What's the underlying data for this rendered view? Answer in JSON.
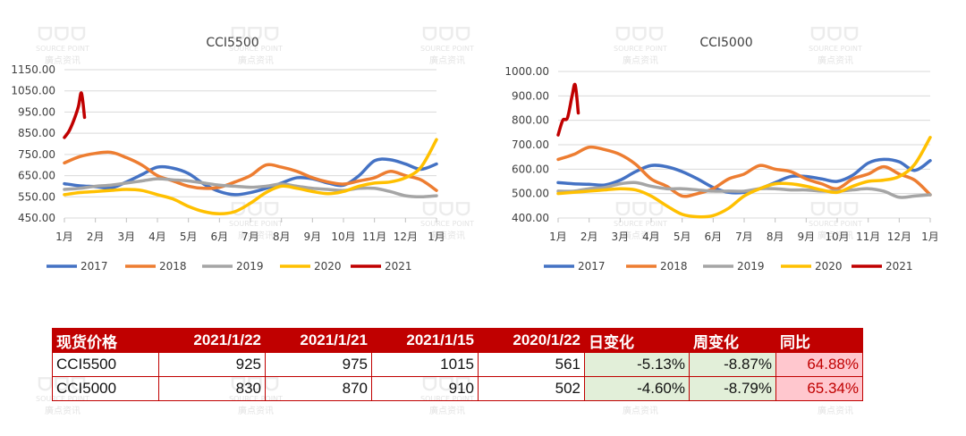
{
  "watermark": {
    "logo": "ᗜᗜᗜ",
    "en": "SOURCE POINT",
    "cn": "廣点资讯"
  },
  "chart_data": [
    {
      "type": "line",
      "title": "CCI5500",
      "ylim": [
        450,
        1150
      ],
      "yticks": [
        "1150.00",
        "1050.00",
        "950.00",
        "850.00",
        "750.00",
        "650.00",
        "550.00",
        "450.00"
      ],
      "ytick_values": [
        1150,
        1050,
        950,
        850,
        750,
        650,
        550,
        450
      ],
      "categories": [
        "1月",
        "2月",
        "3月",
        "4月",
        "5月",
        "6月",
        "7月",
        "8月",
        "9月",
        "10月",
        "11月",
        "12月",
        "1月"
      ],
      "grid": true,
      "legend": "bottom",
      "series": [
        {
          "name": "2017",
          "color": "#4472c4",
          "x": [
            0,
            0.5,
            1,
            1.5,
            2,
            2.5,
            3,
            3.5,
            4,
            4.5,
            5,
            5.5,
            6,
            6.5,
            7,
            7.5,
            8,
            8.5,
            9,
            9.5,
            10,
            10.5,
            11,
            11.5,
            12
          ],
          "values": [
            612,
            602,
            598,
            592,
            620,
            655,
            690,
            685,
            660,
            610,
            575,
            560,
            570,
            590,
            615,
            640,
            635,
            615,
            605,
            650,
            720,
            725,
            705,
            680,
            705
          ]
        },
        {
          "name": "2018",
          "color": "#ed7d31",
          "x": [
            0,
            0.5,
            1,
            1.5,
            2,
            2.5,
            3,
            3.5,
            4,
            4.5,
            5,
            5.5,
            6,
            6.5,
            7,
            7.5,
            8,
            8.5,
            9,
            9.5,
            10,
            10.5,
            11,
            11.5,
            12
          ],
          "values": [
            710,
            740,
            755,
            760,
            735,
            700,
            650,
            625,
            600,
            590,
            595,
            620,
            650,
            700,
            690,
            670,
            640,
            620,
            610,
            625,
            640,
            670,
            650,
            630,
            580
          ]
        },
        {
          "name": "2019",
          "color": "#a5a5a5",
          "x": [
            0,
            0.5,
            1,
            1.5,
            2,
            2.5,
            3,
            3.5,
            4,
            4.5,
            5,
            5.5,
            6,
            6.5,
            7,
            7.5,
            8,
            8.5,
            9,
            9.5,
            10,
            10.5,
            11,
            11.5,
            12
          ],
          "values": [
            585,
            590,
            600,
            605,
            615,
            625,
            635,
            630,
            625,
            615,
            605,
            600,
            595,
            600,
            610,
            600,
            590,
            585,
            580,
            590,
            590,
            575,
            555,
            550,
            555
          ]
        },
        {
          "name": "2020",
          "color": "#ffc000",
          "x": [
            0,
            0.5,
            1,
            1.5,
            2,
            2.5,
            3,
            3.5,
            4,
            4.5,
            5,
            5.5,
            6,
            6.5,
            7,
            7.5,
            8,
            8.5,
            9,
            9.5,
            10,
            10.5,
            11,
            11.5,
            12
          ],
          "values": [
            560,
            570,
            575,
            580,
            585,
            580,
            560,
            540,
            505,
            480,
            470,
            480,
            520,
            570,
            600,
            590,
            575,
            565,
            575,
            600,
            615,
            620,
            640,
            690,
            820
          ]
        },
        {
          "name": "2021",
          "color": "#c00000",
          "x": [
            0,
            0.15,
            0.3,
            0.45,
            0.55,
            0.65
          ],
          "values": [
            830,
            860,
            910,
            975,
            1040,
            925
          ]
        }
      ]
    },
    {
      "type": "line",
      "title": "CCI5000",
      "ylim": [
        400,
        1000
      ],
      "yticks": [
        "1000.00",
        "900.00",
        "800.00",
        "700.00",
        "600.00",
        "500.00",
        "400.00"
      ],
      "ytick_values": [
        1000,
        900,
        800,
        700,
        600,
        500,
        400
      ],
      "categories": [
        "1月",
        "2月",
        "3月",
        "4月",
        "5月",
        "6月",
        "7月",
        "8月",
        "9月",
        "10月",
        "11月",
        "12月",
        "1月"
      ],
      "grid": true,
      "legend": "bottom",
      "series": [
        {
          "name": "2017",
          "color": "#4472c4",
          "x": [
            0,
            0.5,
            1,
            1.5,
            2,
            2.5,
            3,
            3.5,
            4,
            4.5,
            5,
            5.5,
            6,
            6.5,
            7,
            7.5,
            8,
            8.5,
            9,
            9.5,
            10,
            10.5,
            11,
            11.5,
            12
          ],
          "values": [
            545,
            540,
            538,
            535,
            555,
            590,
            615,
            610,
            590,
            560,
            525,
            505,
            505,
            520,
            545,
            570,
            570,
            560,
            550,
            575,
            625,
            640,
            630,
            595,
            635
          ]
        },
        {
          "name": "2018",
          "color": "#ed7d31",
          "x": [
            0,
            0.5,
            1,
            1.5,
            2,
            2.5,
            3,
            3.5,
            4,
            4.5,
            5,
            5.5,
            6,
            6.5,
            7,
            7.5,
            8,
            8.5,
            9,
            9.5,
            10,
            10.5,
            11,
            11.5,
            12
          ],
          "values": [
            640,
            660,
            690,
            680,
            660,
            620,
            560,
            530,
            490,
            500,
            520,
            560,
            580,
            615,
            600,
            590,
            560,
            540,
            520,
            560,
            580,
            610,
            580,
            555,
            495
          ]
        },
        {
          "name": "2019",
          "color": "#a5a5a5",
          "x": [
            0,
            0.5,
            1,
            1.5,
            2,
            2.5,
            3,
            3.5,
            4,
            4.5,
            5,
            5.5,
            6,
            6.5,
            7,
            7.5,
            8,
            8.5,
            9,
            9.5,
            10,
            10.5,
            11,
            11.5,
            12
          ],
          "values": [
            510,
            510,
            520,
            525,
            540,
            545,
            530,
            520,
            520,
            515,
            510,
            510,
            510,
            520,
            520,
            515,
            515,
            510,
            510,
            515,
            520,
            510,
            485,
            490,
            495
          ]
        },
        {
          "name": "2020",
          "color": "#ffc000",
          "x": [
            0,
            0.5,
            1,
            1.5,
            2,
            2.5,
            3,
            3.5,
            4,
            4.5,
            5,
            5.5,
            6,
            6.5,
            7,
            7.5,
            8,
            8.5,
            9,
            9.5,
            10,
            10.5,
            11,
            11.5,
            12
          ],
          "values": [
            500,
            505,
            510,
            515,
            520,
            515,
            490,
            450,
            415,
            405,
            410,
            440,
            490,
            520,
            540,
            540,
            530,
            515,
            505,
            530,
            550,
            555,
            570,
            620,
            730
          ]
        },
        {
          "name": "2021",
          "color": "#c00000",
          "x": [
            0,
            0.15,
            0.3,
            0.45,
            0.55,
            0.65
          ],
          "values": [
            740,
            800,
            810,
            900,
            945,
            830
          ]
        }
      ]
    }
  ],
  "table": {
    "headers": [
      "现货价格",
      "2021/1/22",
      "2021/1/21",
      "2021/1/15",
      "2020/1/22",
      "日变化",
      "周变化",
      "同比"
    ],
    "rows": [
      [
        "CCI5500",
        "925",
        "975",
        "1015",
        "561",
        "-5.13%",
        "-8.87%",
        "64.88%"
      ],
      [
        "CCI5000",
        "830",
        "870",
        "910",
        "502",
        "-4.60%",
        "-8.79%",
        "65.34%"
      ]
    ]
  }
}
